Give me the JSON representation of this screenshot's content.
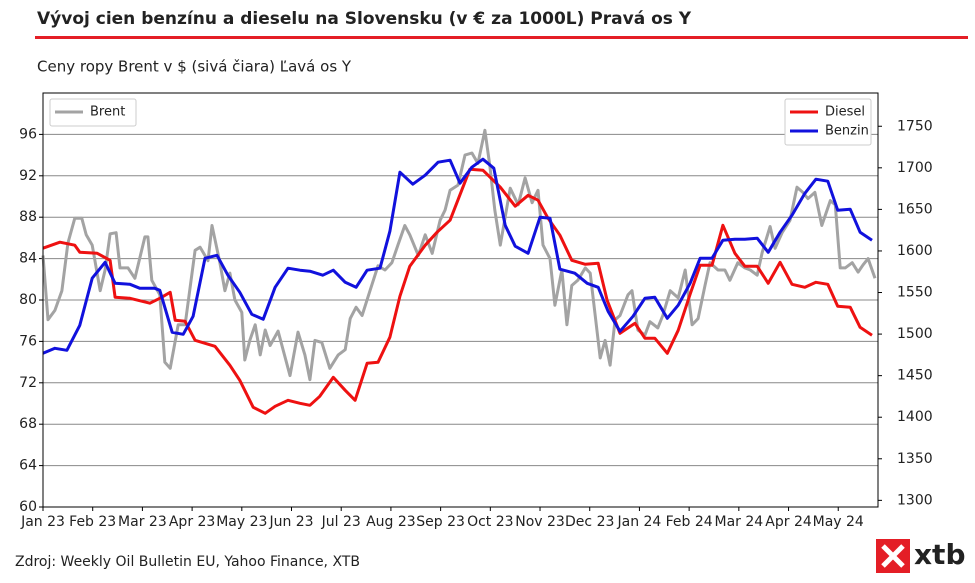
{
  "chart_data": {
    "type": "line",
    "title": "Vývoj cien benzínu a dieselu na Slovensku (v € za 1000L) Pravá os Y",
    "subtitle": "Ceny ropy Brent v $ (sivá čiara) Ľavá os Y",
    "xlim": [
      0,
      16.8
    ],
    "xticks": [
      {
        "value": 0,
        "label": "Jan 23"
      },
      {
        "value": 1,
        "label": "Feb 23"
      },
      {
        "value": 2,
        "label": "Mar 23"
      },
      {
        "value": 3,
        "label": "Apr 23"
      },
      {
        "value": 4,
        "label": "May 23"
      },
      {
        "value": 5,
        "label": "Jun 23"
      },
      {
        "value": 6,
        "label": "Jul 23"
      },
      {
        "value": 7,
        "label": "Aug 23"
      },
      {
        "value": 8,
        "label": "Sep 23"
      },
      {
        "value": 9,
        "label": "Oct 23"
      },
      {
        "value": 10,
        "label": "Nov 23"
      },
      {
        "value": 11,
        "label": "Dec 23"
      },
      {
        "value": 12,
        "label": "Jan 24"
      },
      {
        "value": 13,
        "label": "Feb 24"
      },
      {
        "value": 14,
        "label": "Mar 24"
      },
      {
        "value": 15,
        "label": "Apr 24"
      },
      {
        "value": 16,
        "label": "May 24"
      }
    ],
    "ylim": [
      60,
      100
    ],
    "yticks": [
      60,
      64,
      68,
      72,
      76,
      80,
      84,
      88,
      92,
      96
    ],
    "y2lim": [
      1292,
      1790
    ],
    "y2ticks": [
      1300,
      1350,
      1400,
      1450,
      1500,
      1550,
      1600,
      1650,
      1700,
      1750
    ],
    "grid": true,
    "legend_loc": "upper left",
    "legend2_loc": "upper right",
    "series": [
      {
        "name": "Brent",
        "color": "#a3a3a3",
        "axis": "y",
        "x": [
          0.0,
          0.1,
          0.24,
          0.38,
          0.5,
          0.64,
          0.78,
          0.87,
          0.99,
          1.15,
          1.25,
          1.35,
          1.47,
          1.55,
          1.71,
          1.85,
          2.05,
          2.11,
          2.19,
          2.35,
          2.45,
          2.56,
          2.72,
          2.86,
          3.06,
          3.16,
          3.32,
          3.4,
          3.56,
          3.66,
          3.76,
          3.86,
          4.0,
          4.06,
          4.16,
          4.27,
          4.37,
          4.47,
          4.57,
          4.73,
          4.97,
          5.13,
          5.27,
          5.37,
          5.47,
          5.61,
          5.77,
          5.94,
          6.08,
          6.18,
          6.3,
          6.42,
          6.58,
          6.74,
          6.88,
          7.02,
          7.14,
          7.28,
          7.38,
          7.55,
          7.69,
          7.83,
          7.99,
          8.09,
          8.19,
          8.35,
          8.49,
          8.63,
          8.75,
          8.89,
          8.99,
          9.09,
          9.2,
          9.4,
          9.56,
          9.7,
          9.84,
          9.96,
          10.06,
          10.2,
          10.3,
          10.44,
          10.54,
          10.64,
          10.76,
          10.91,
          11.01,
          11.11,
          11.21,
          11.31,
          11.41,
          11.51,
          11.61,
          11.77,
          11.85,
          11.97,
          12.11,
          12.21,
          12.37,
          12.47,
          12.62,
          12.78,
          12.92,
          13.06,
          13.18,
          13.32,
          13.42,
          13.58,
          13.72,
          13.82,
          13.98,
          14.12,
          14.23,
          14.37,
          14.47,
          14.63,
          14.73,
          14.87,
          15.03,
          15.17,
          15.29,
          15.39,
          15.53,
          15.67,
          15.84,
          15.94,
          16.04,
          16.14,
          16.28,
          16.4,
          16.5,
          16.6,
          16.74
        ],
        "values": [
          84.3,
          78.1,
          79.0,
          80.9,
          85.5,
          87.9,
          87.9,
          86.3,
          85.3,
          80.9,
          82.9,
          86.4,
          86.5,
          83.1,
          83.1,
          82.1,
          86.1,
          86.1,
          81.9,
          80.5,
          74.0,
          73.4,
          77.6,
          77.6,
          84.8,
          85.1,
          83.8,
          87.2,
          83.6,
          80.9,
          82.6,
          80.0,
          78.8,
          74.2,
          76.1,
          77.6,
          74.7,
          77.1,
          75.6,
          77.0,
          72.7,
          76.9,
          74.7,
          72.3,
          76.1,
          75.9,
          73.4,
          74.7,
          75.2,
          78.2,
          79.3,
          78.5,
          80.9,
          83.3,
          82.9,
          83.6,
          85.3,
          87.2,
          86.3,
          84.3,
          86.3,
          84.5,
          87.7,
          88.7,
          90.6,
          91.1,
          94.0,
          94.2,
          93.2,
          96.4,
          93.0,
          88.7,
          85.3,
          90.8,
          89.2,
          91.8,
          89.4,
          90.6,
          85.3,
          84.0,
          79.5,
          82.9,
          77.6,
          81.4,
          81.9,
          83.1,
          82.6,
          78.5,
          74.4,
          76.1,
          73.7,
          78.1,
          78.5,
          80.5,
          80.9,
          77.1,
          76.6,
          77.9,
          77.3,
          78.5,
          80.9,
          80.2,
          82.9,
          77.6,
          78.2,
          81.4,
          83.6,
          82.9,
          82.9,
          81.9,
          83.6,
          83.1,
          82.9,
          82.4,
          84.6,
          87.1,
          85.0,
          86.5,
          87.7,
          90.9,
          90.4,
          89.8,
          90.4,
          87.2,
          89.6,
          89.2,
          83.1,
          83.1,
          83.6,
          82.7,
          83.4,
          84.0,
          82.1
        ]
      },
      {
        "name": "Diesel",
        "color": "#ee1111",
        "axis": "y2",
        "x": [
          0.0,
          0.34,
          0.64,
          0.74,
          1.09,
          1.35,
          1.45,
          1.75,
          2.15,
          2.35,
          2.56,
          2.66,
          2.86,
          3.06,
          3.46,
          3.76,
          3.96,
          4.23,
          4.47,
          4.67,
          4.93,
          5.17,
          5.37,
          5.57,
          5.84,
          6.08,
          6.28,
          6.52,
          6.74,
          6.98,
          7.18,
          7.38,
          7.69,
          7.93,
          8.19,
          8.59,
          8.85,
          9.2,
          9.5,
          9.76,
          9.96,
          10.16,
          10.4,
          10.64,
          10.91,
          11.17,
          11.35,
          11.61,
          11.91,
          12.11,
          12.31,
          12.56,
          12.78,
          13.02,
          13.22,
          13.46,
          13.68,
          13.92,
          14.12,
          14.37,
          14.59,
          14.83,
          15.07,
          15.33,
          15.55,
          15.79,
          15.99,
          16.24,
          16.44,
          16.68
        ],
        "values": [
          1603.3,
          1610.5,
          1606.9,
          1598.4,
          1597.2,
          1588.8,
          1544.3,
          1543.1,
          1537.1,
          1543.1,
          1550.3,
          1516.6,
          1515.4,
          1492.5,
          1485.3,
          1462.5,
          1444.4,
          1411.9,
          1404.7,
          1413.1,
          1420.3,
          1416.7,
          1414.3,
          1425.2,
          1448.0,
          1432.4,
          1420.3,
          1464.9,
          1466.1,
          1496.2,
          1545.5,
          1581.6,
          1606.9,
          1622.5,
          1637.0,
          1698.3,
          1697.1,
          1676.7,
          1653.8,
          1667.0,
          1661.0,
          1639.4,
          1618.9,
          1588.8,
          1584.0,
          1585.2,
          1540.7,
          1501.0,
          1513.0,
          1495.0,
          1495.0,
          1476.9,
          1504.6,
          1547.9,
          1582.8,
          1582.8,
          1630.9,
          1597.2,
          1581.6,
          1581.6,
          1561.1,
          1586.4,
          1559.9,
          1556.3,
          1562.3,
          1559.9,
          1533.5,
          1532.3,
          1508.2,
          1498.6
        ]
      },
      {
        "name": "Benzin",
        "color": "#1111dd",
        "axis": "y2",
        "x": [
          0.0,
          0.24,
          0.48,
          0.74,
          0.99,
          1.25,
          1.45,
          1.75,
          1.95,
          2.25,
          2.35,
          2.6,
          2.82,
          3.02,
          3.26,
          3.5,
          3.72,
          3.96,
          4.2,
          4.43,
          4.67,
          4.93,
          5.17,
          5.37,
          5.63,
          5.84,
          6.08,
          6.3,
          6.52,
          6.78,
          6.98,
          7.18,
          7.44,
          7.69,
          7.95,
          8.19,
          8.39,
          8.63,
          8.85,
          9.07,
          9.3,
          9.5,
          9.76,
          10.0,
          10.2,
          10.4,
          10.7,
          10.95,
          11.17,
          11.37,
          11.61,
          11.87,
          12.11,
          12.31,
          12.56,
          12.78,
          13.02,
          13.22,
          13.46,
          13.68,
          13.92,
          14.12,
          14.37,
          14.59,
          14.83,
          15.07,
          15.33,
          15.55,
          15.79,
          15.99,
          16.24,
          16.44,
          16.68
        ],
        "values": [
          1476.9,
          1482.9,
          1480.5,
          1510.6,
          1567.2,
          1586.4,
          1561.1,
          1559.9,
          1555.1,
          1555.1,
          1552.7,
          1502.2,
          1499.8,
          1521.4,
          1591.2,
          1594.8,
          1570.8,
          1550.3,
          1523.8,
          1517.8,
          1556.3,
          1579.2,
          1576.8,
          1575.6,
          1570.8,
          1576.8,
          1562.3,
          1556.3,
          1576.8,
          1579.2,
          1623.7,
          1694.7,
          1680.3,
          1691.1,
          1706.7,
          1709.2,
          1681.5,
          1700.7,
          1710.4,
          1699.5,
          1630.9,
          1605.7,
          1597.2,
          1640.6,
          1639.4,
          1578.0,
          1573.2,
          1561.1,
          1556.3,
          1527.4,
          1503.4,
          1521.4,
          1543.1,
          1544.3,
          1519.0,
          1534.7,
          1561.1,
          1591.2,
          1591.2,
          1612.9,
          1614.1,
          1614.1,
          1615.3,
          1598.4,
          1622.5,
          1643.0,
          1669.4,
          1686.3,
          1683.9,
          1649.0,
          1650.2,
          1622.5,
          1612.9
        ]
      }
    ]
  },
  "footer": {
    "source": "Zdroj: Weekly Oil Bulletin EU, Yahoo Finance, XTB",
    "logo": "xtb"
  }
}
